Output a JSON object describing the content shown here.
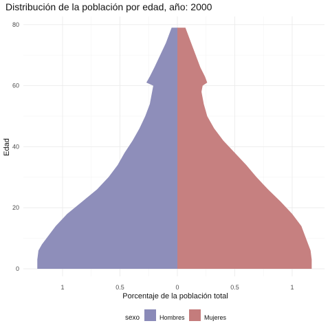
{
  "chart_data": {
    "type": "area",
    "orientation": "horizontal-population-pyramid",
    "title": "Distribución de la población por edad, año: 2000",
    "xlabel": "Porcentaje de la población total",
    "ylabel": "Edad",
    "xlim": [
      -1.25,
      1.25
    ],
    "ylim": [
      0,
      80
    ],
    "x_ticks": [
      -1,
      -0.5,
      0,
      0.5,
      1
    ],
    "x_tick_labels": [
      "1",
      "0.5",
      "0",
      "0.5",
      "1"
    ],
    "y_ticks": [
      0,
      20,
      40,
      60,
      80
    ],
    "y_tick_labels": [
      "0",
      "20",
      "40",
      "60",
      "80"
    ],
    "grid": true,
    "legend": {
      "title": "sexo",
      "position": "bottom"
    },
    "ages": [
      0,
      3,
      6,
      8,
      10,
      14,
      18,
      22,
      26,
      30,
      34,
      38,
      42,
      46,
      50,
      54,
      58,
      60,
      61,
      63,
      66,
      70,
      74,
      77,
      79
    ],
    "series": [
      {
        "name": "Hombres",
        "color": "#8a8ab8",
        "values": [
          -1.22,
          -1.22,
          -1.21,
          -1.18,
          -1.14,
          -1.06,
          -0.96,
          -0.83,
          -0.7,
          -0.6,
          -0.52,
          -0.46,
          -0.39,
          -0.33,
          -0.28,
          -0.24,
          -0.22,
          -0.21,
          -0.27,
          -0.24,
          -0.2,
          -0.15,
          -0.1,
          -0.07,
          -0.05
        ]
      },
      {
        "name": "Mujeres",
        "color": "#c47c7c",
        "values": [
          1.17,
          1.17,
          1.16,
          1.14,
          1.12,
          1.08,
          1.0,
          0.9,
          0.79,
          0.69,
          0.6,
          0.5,
          0.4,
          0.32,
          0.26,
          0.23,
          0.21,
          0.22,
          0.26,
          0.24,
          0.2,
          0.16,
          0.12,
          0.09,
          0.07
        ]
      }
    ]
  }
}
